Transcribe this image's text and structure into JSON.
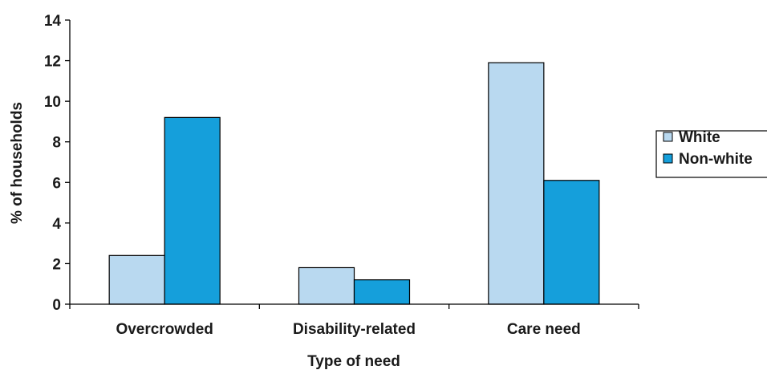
{
  "chart_data": {
    "type": "bar",
    "title": "",
    "xlabel": "Type of need",
    "ylabel": "% of households",
    "categories": [
      "Overcrowded",
      "Disability-related",
      "Care need"
    ],
    "ylim": [
      0,
      14
    ],
    "yticks": [
      0,
      2,
      4,
      6,
      8,
      10,
      12,
      14
    ],
    "grid": false,
    "legend_position": "right",
    "series": [
      {
        "name": "White",
        "color": "#b9d9f0",
        "values": [
          2.4,
          1.8,
          11.9
        ]
      },
      {
        "name": "Non-white",
        "color": "#159fdb",
        "values": [
          9.2,
          1.2,
          6.1
        ]
      }
    ]
  }
}
